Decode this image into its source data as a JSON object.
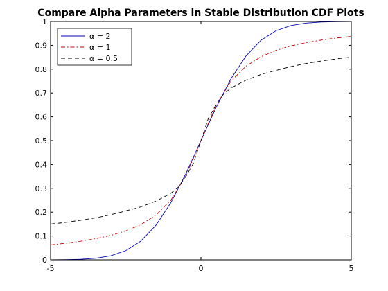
{
  "chart_data": {
    "type": "line",
    "title": "Compare Alpha Parameters in Stable Distribution CDF Plots",
    "xlabel": "",
    "ylabel": "",
    "xlim": [
      -5,
      5
    ],
    "ylim": [
      0,
      1
    ],
    "x_ticks": [
      "-5",
      "0",
      "5"
    ],
    "y_ticks": [
      "0",
      "0.1",
      "0.2",
      "0.3",
      "0.4",
      "0.5",
      "0.6",
      "0.7",
      "0.8",
      "0.9",
      "1"
    ],
    "grid": false,
    "legend_position": "top-left",
    "series": [
      {
        "name": "α = 2",
        "color": "#0000ad",
        "dash": "solid",
        "x": [
          -5,
          -4.5,
          -4,
          -3.5,
          -3,
          -2.5,
          -2,
          -1.5,
          -1,
          -0.5,
          0,
          0.5,
          1,
          1.5,
          2,
          2.5,
          3,
          3.5,
          4,
          4.5,
          5
        ],
        "y": [
          0.0002,
          0.0007,
          0.0023,
          0.0067,
          0.0169,
          0.0385,
          0.0786,
          0.1444,
          0.2398,
          0.3618,
          0.5,
          0.6382,
          0.7602,
          0.8556,
          0.9214,
          0.9615,
          0.9831,
          0.9933,
          0.9977,
          0.9993,
          0.9998
        ]
      },
      {
        "name": "α = 1",
        "color": "#c00000",
        "dash": "dashdot",
        "x": [
          -5,
          -4.5,
          -4,
          -3.5,
          -3,
          -2.5,
          -2,
          -1.5,
          -1,
          -0.5,
          0,
          0.5,
          1,
          1.5,
          2,
          2.5,
          3,
          3.5,
          4,
          4.5,
          5
        ],
        "y": [
          0.0628,
          0.0695,
          0.078,
          0.0886,
          0.1024,
          0.1211,
          0.1476,
          0.1872,
          0.25,
          0.3524,
          0.5,
          0.6476,
          0.75,
          0.8128,
          0.8524,
          0.8789,
          0.8976,
          0.9114,
          0.922,
          0.9305,
          0.9372
        ]
      },
      {
        "name": "α = 0.5",
        "color": "#000000",
        "dash": "dashed",
        "x": [
          -5,
          -4.5,
          -4,
          -3.5,
          -3,
          -2.5,
          -2,
          -1.5,
          -1,
          -0.75,
          -0.5,
          -0.25,
          0,
          0.25,
          0.5,
          0.75,
          1,
          1.5,
          2,
          2.5,
          3,
          3.5,
          4,
          4.5,
          5
        ],
        "y": [
          0.15,
          0.157,
          0.166,
          0.176,
          0.189,
          0.205,
          0.222,
          0.246,
          0.279,
          0.305,
          0.35,
          0.405,
          0.5,
          0.595,
          0.65,
          0.695,
          0.721,
          0.754,
          0.778,
          0.795,
          0.811,
          0.824,
          0.834,
          0.843,
          0.85
        ]
      }
    ]
  }
}
